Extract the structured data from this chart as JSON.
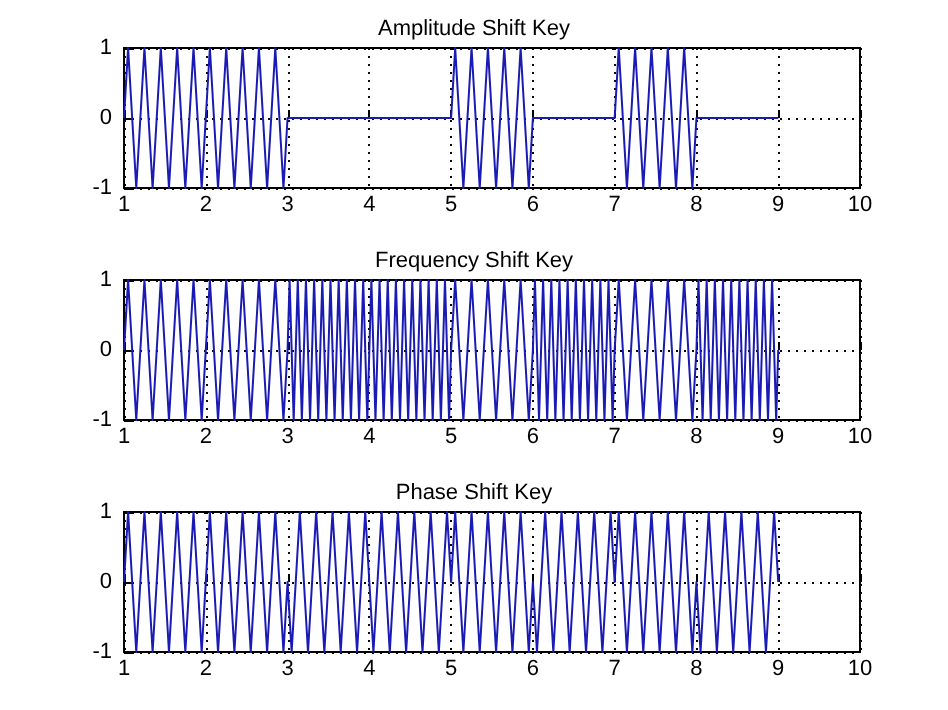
{
  "chart_data": [
    {
      "type": "line",
      "title": "Amplitude Shift Key",
      "xlim": [
        1,
        10
      ],
      "xticks": [
        1,
        2,
        3,
        4,
        5,
        6,
        7,
        8,
        9,
        10
      ],
      "ylim": [
        -1,
        1
      ],
      "yticks": [
        -1,
        0,
        1
      ],
      "grid": true,
      "marker": "none",
      "series": [
        {
          "color": "#1a1ab4",
          "x": [
            1,
            1.05,
            1.15,
            1.25,
            1.35,
            1.45,
            1.55,
            1.65,
            1.75,
            1.85,
            1.95,
            2.05,
            2.15,
            2.25,
            2.35,
            2.45,
            2.55,
            2.65,
            2.75,
            2.85,
            2.95,
            3,
            5,
            5.05,
            5.15,
            5.25,
            5.35,
            5.45,
            5.55,
            5.65,
            5.75,
            5.85,
            5.95,
            6,
            7,
            7.05,
            7.15,
            7.25,
            7.35,
            7.45,
            7.55,
            7.65,
            7.75,
            7.85,
            7.95,
            8,
            9
          ],
          "values": [
            0,
            1,
            -1,
            1,
            -1,
            1,
            -1,
            1,
            -1,
            1,
            -1,
            1,
            -1,
            1,
            -1,
            1,
            -1,
            1,
            -1,
            1,
            -1,
            0,
            0,
            1,
            -1,
            1,
            -1,
            1,
            -1,
            1,
            -1,
            1,
            -1,
            0,
            0,
            1,
            -1,
            1,
            -1,
            1,
            -1,
            1,
            -1,
            1,
            -1,
            0,
            0
          ]
        }
      ]
    },
    {
      "type": "line",
      "title": "Frequency Shift Key",
      "xlim": [
        1,
        10
      ],
      "xticks": [
        1,
        2,
        3,
        4,
        5,
        6,
        7,
        8,
        9,
        10
      ],
      "ylim": [
        -1,
        1
      ],
      "yticks": [
        -1,
        0,
        1
      ],
      "grid": true,
      "marker": "none",
      "series": [
        {
          "color": "#1a1ab4",
          "x": [
            1,
            1.05,
            1.15,
            1.25,
            1.35,
            1.45,
            1.55,
            1.65,
            1.75,
            1.85,
            1.95,
            2.05,
            2.15,
            2.25,
            2.35,
            2.45,
            2.55,
            2.65,
            2.75,
            2.85,
            2.95,
            3,
            3.025,
            3.075,
            3.125,
            3.175,
            3.225,
            3.275,
            3.325,
            3.375,
            3.425,
            3.475,
            3.525,
            3.575,
            3.625,
            3.675,
            3.725,
            3.775,
            3.825,
            3.875,
            3.925,
            3.975,
            4.025,
            4.075,
            4.125,
            4.175,
            4.225,
            4.275,
            4.325,
            4.375,
            4.425,
            4.475,
            4.525,
            4.575,
            4.625,
            4.675,
            4.725,
            4.775,
            4.825,
            4.875,
            4.925,
            4.975,
            5,
            5.05,
            5.15,
            5.25,
            5.35,
            5.45,
            5.55,
            5.65,
            5.75,
            5.85,
            5.95,
            6,
            6.025,
            6.075,
            6.125,
            6.175,
            6.225,
            6.275,
            6.325,
            6.375,
            6.425,
            6.475,
            6.525,
            6.575,
            6.625,
            6.675,
            6.725,
            6.775,
            6.825,
            6.875,
            6.925,
            6.975,
            7,
            7.05,
            7.15,
            7.25,
            7.35,
            7.45,
            7.55,
            7.65,
            7.75,
            7.85,
            7.95,
            8,
            8.025,
            8.075,
            8.125,
            8.175,
            8.225,
            8.275,
            8.325,
            8.375,
            8.425,
            8.475,
            8.525,
            8.575,
            8.625,
            8.675,
            8.725,
            8.775,
            8.825,
            8.875,
            8.925,
            8.975,
            9
          ],
          "values": [
            0,
            1,
            -1,
            1,
            -1,
            1,
            -1,
            1,
            -1,
            1,
            -1,
            1,
            -1,
            1,
            -1,
            1,
            -1,
            1,
            -1,
            1,
            -1,
            0,
            1,
            -1,
            1,
            -1,
            1,
            -1,
            1,
            -1,
            1,
            -1,
            1,
            -1,
            1,
            -1,
            1,
            -1,
            1,
            -1,
            1,
            -1,
            1,
            -1,
            1,
            -1,
            1,
            -1,
            1,
            -1,
            1,
            -1,
            1,
            -1,
            1,
            -1,
            1,
            -1,
            1,
            -1,
            1,
            -1,
            0,
            1,
            -1,
            1,
            -1,
            1,
            -1,
            1,
            -1,
            1,
            -1,
            0,
            1,
            -1,
            1,
            -1,
            1,
            -1,
            1,
            -1,
            1,
            -1,
            1,
            -1,
            1,
            -1,
            1,
            -1,
            1,
            -1,
            1,
            -1,
            0,
            1,
            -1,
            1,
            -1,
            1,
            -1,
            1,
            -1,
            1,
            -1,
            0,
            1,
            -1,
            1,
            -1,
            1,
            -1,
            1,
            -1,
            1,
            -1,
            1,
            -1,
            1,
            -1,
            1,
            -1,
            1,
            -1,
            1,
            -1,
            0
          ]
        }
      ]
    },
    {
      "type": "line",
      "title": "Phase Shift Key",
      "xlim": [
        1,
        10
      ],
      "xticks": [
        1,
        2,
        3,
        4,
        5,
        6,
        7,
        8,
        9,
        10
      ],
      "ylim": [
        -1,
        1
      ],
      "yticks": [
        -1,
        0,
        1
      ],
      "grid": true,
      "marker": "none",
      "series": [
        {
          "color": "#1a1ab4",
          "x": [
            1,
            1.05,
            1.15,
            1.25,
            1.35,
            1.45,
            1.55,
            1.65,
            1.75,
            1.85,
            1.95,
            2,
            2.05,
            2.15,
            2.25,
            2.35,
            2.45,
            2.55,
            2.65,
            2.75,
            2.85,
            2.95,
            3,
            3.05,
            3.15,
            3.25,
            3.35,
            3.45,
            3.55,
            3.65,
            3.75,
            3.85,
            3.95,
            4,
            4.05,
            4.15,
            4.25,
            4.35,
            4.45,
            4.55,
            4.65,
            4.75,
            4.85,
            4.95,
            5,
            5.05,
            5.15,
            5.25,
            5.35,
            5.45,
            5.55,
            5.65,
            5.75,
            5.85,
            5.95,
            6,
            6.05,
            6.15,
            6.25,
            6.35,
            6.45,
            6.55,
            6.65,
            6.75,
            6.85,
            6.95,
            7,
            7.05,
            7.15,
            7.25,
            7.35,
            7.45,
            7.55,
            7.65,
            7.75,
            7.85,
            7.95,
            8,
            8.05,
            8.15,
            8.25,
            8.35,
            8.45,
            8.55,
            8.65,
            8.75,
            8.85,
            8.95,
            9
          ],
          "values": [
            0,
            1,
            -1,
            1,
            -1,
            1,
            -1,
            1,
            -1,
            1,
            -1,
            0,
            1,
            -1,
            1,
            -1,
            1,
            -1,
            1,
            -1,
            1,
            -1,
            0,
            -1,
            1,
            -1,
            1,
            -1,
            1,
            -1,
            1,
            -1,
            1,
            0,
            -1,
            1,
            -1,
            1,
            -1,
            1,
            -1,
            1,
            -1,
            1,
            0,
            1,
            -1,
            1,
            -1,
            1,
            -1,
            1,
            -1,
            1,
            -1,
            0,
            -1,
            1,
            -1,
            1,
            -1,
            1,
            -1,
            1,
            -1,
            1,
            0,
            1,
            -1,
            1,
            -1,
            1,
            -1,
            1,
            -1,
            1,
            -1,
            0,
            -1,
            1,
            -1,
            1,
            -1,
            1,
            -1,
            1,
            -1,
            1,
            0
          ]
        }
      ]
    }
  ]
}
